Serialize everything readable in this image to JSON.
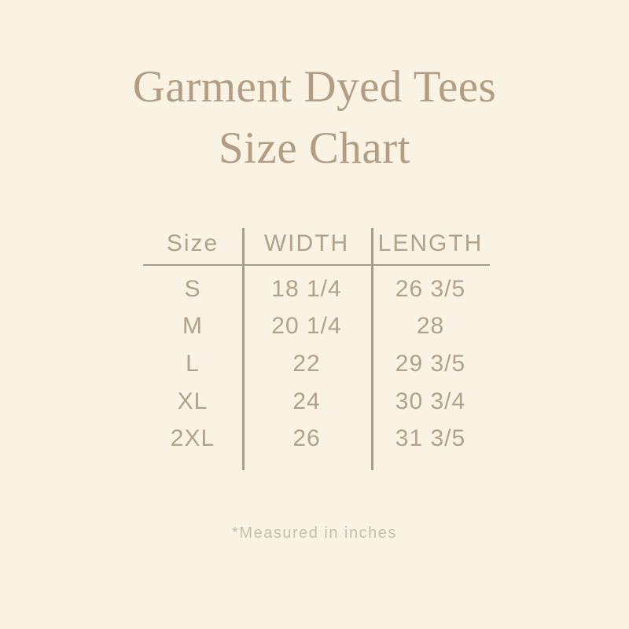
{
  "title": {
    "line1": "Garment Dyed Tees",
    "line2": "Size Chart"
  },
  "table": {
    "headers": {
      "size": "Size",
      "width": "WIDTH",
      "length": "LENGTH"
    },
    "rows": [
      {
        "size": "S",
        "width": "18 1/4",
        "length": "26 3/5"
      },
      {
        "size": "M",
        "width": "20 1/4",
        "length": "28"
      },
      {
        "size": "L",
        "width": "22",
        "length": "29 3/5"
      },
      {
        "size": "XL",
        "width": "24",
        "length": "30 3/4"
      },
      {
        "size": "2XL",
        "width": "26",
        "length": "31 3/5"
      }
    ]
  },
  "footnote": "*Measured in inches",
  "colors": {
    "background": "#faf3e3",
    "title_text": "#b29e85",
    "table_text": "#b1a28b",
    "rule_line": "#a79d90",
    "footnote_text": "#c8bfab"
  },
  "chart_data": {
    "type": "table",
    "title": "Garment Dyed Tees Size Chart",
    "columns": [
      "Size",
      "WIDTH",
      "LENGTH"
    ],
    "rows": [
      [
        "S",
        "18 1/4",
        "26 3/5"
      ],
      [
        "M",
        "20 1/4",
        "28"
      ],
      [
        "L",
        "22",
        "29 3/5"
      ],
      [
        "XL",
        "24",
        "30 3/4"
      ],
      [
        "2XL",
        "26",
        "31 3/5"
      ]
    ],
    "units": "inches",
    "note": "*Measured in inches"
  }
}
